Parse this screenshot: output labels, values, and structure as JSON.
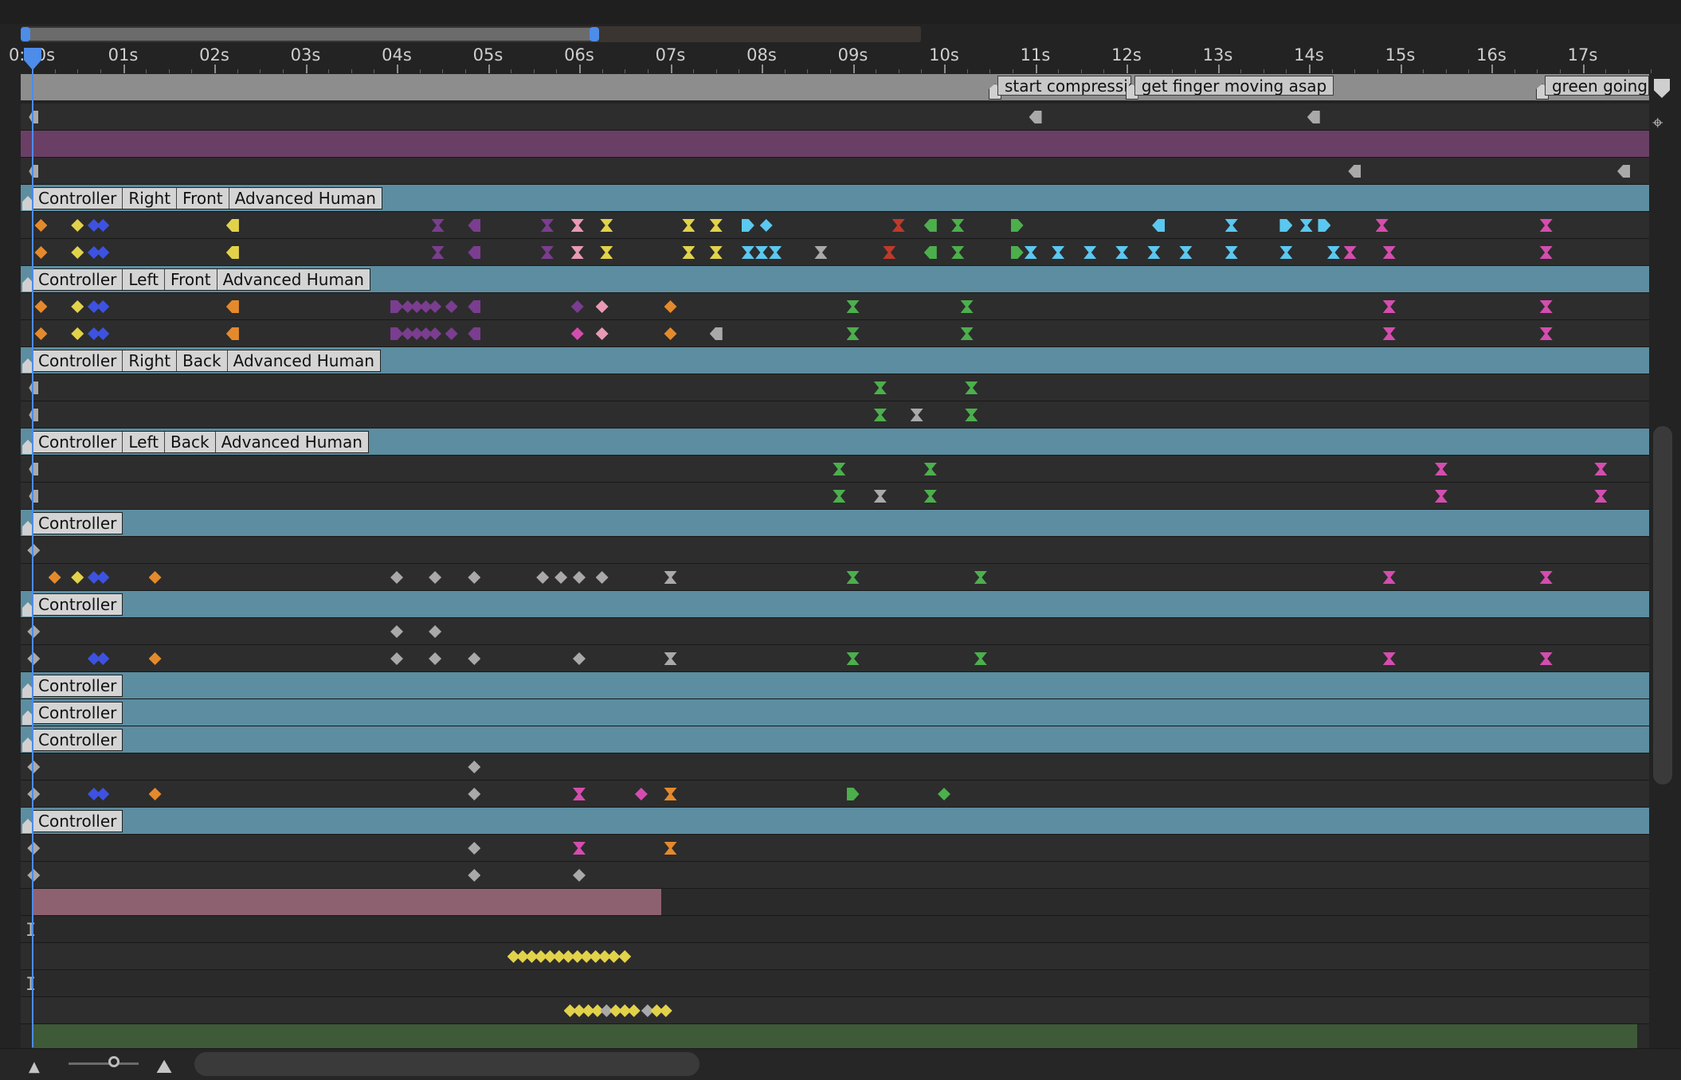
{
  "colors": {
    "orange": "#e58a2c",
    "yellow": "#e2d24a",
    "blue": "#3d52e0",
    "purple": "#7a3d8f",
    "pink": "#e89ab3",
    "magenta": "#d44dae",
    "cyan": "#5ac8f0",
    "green": "#4caf4c",
    "red": "#c0392b",
    "gray": "#a9a9a9",
    "header": "#5c8da0"
  },
  "ruler": {
    "labels": [
      "0:00s",
      "01s",
      "02s",
      "03s",
      "04s",
      "05s",
      "06s",
      "07s",
      "08s",
      "09s",
      "10s",
      "11s",
      "12s",
      "13s",
      "14s",
      "15s",
      "16s",
      "17s"
    ]
  },
  "markers": [
    {
      "label": "start compression",
      "time": 10.55
    },
    {
      "label": "get finger moving asap",
      "time": 12.05
    },
    {
      "label": "green going",
      "time": 16.55
    }
  ],
  "icons": {
    "playhead": "playhead-icon",
    "expand": "expand-triangle-icon",
    "zoom_out": "zoom-out-mountain-icon",
    "zoom_in": "zoom-in-mountain-icon",
    "marker_end": "marker-end-icon",
    "keyframe_side": "keyframe-ease-icon"
  },
  "rows": [
    {
      "type": "track",
      "kf": [
        [
          0.02,
          "gray",
          "start"
        ],
        [
          11.0,
          "gray",
          "left"
        ],
        [
          14.05,
          "gray",
          "left"
        ]
      ]
    },
    {
      "type": "purple"
    },
    {
      "type": "track",
      "kf": [
        [
          0.02,
          "gray",
          "start"
        ],
        [
          14.5,
          "gray",
          "left"
        ],
        [
          17.45,
          "gray",
          "left"
        ]
      ]
    },
    {
      "type": "header",
      "label": [
        "Controller",
        "Right",
        "Front",
        "Advanced Human"
      ]
    },
    {
      "type": "track",
      "kf": [
        [
          0.1,
          "orange",
          "diamond"
        ],
        [
          0.5,
          "yellow",
          "diamond"
        ],
        [
          0.68,
          "blue",
          "diamond"
        ],
        [
          0.78,
          "blue",
          "diamond"
        ],
        [
          2.2,
          "yellow",
          "left"
        ],
        [
          4.45,
          "purple",
          "hour"
        ],
        [
          4.85,
          "purple",
          "left"
        ],
        [
          5.65,
          "purple",
          "hour"
        ],
        [
          5.98,
          "pink",
          "hour"
        ],
        [
          6.3,
          "yellow",
          "hour"
        ],
        [
          7.2,
          "yellow",
          "hour"
        ],
        [
          7.5,
          "yellow",
          "hour"
        ],
        [
          7.85,
          "cyan",
          "right"
        ],
        [
          8.05,
          "cyan",
          "diamond"
        ],
        [
          9.5,
          "red",
          "hour"
        ],
        [
          9.85,
          "green",
          "left"
        ],
        [
          10.15,
          "green",
          "hour"
        ],
        [
          10.8,
          "green",
          "right"
        ],
        [
          12.35,
          "cyan",
          "left"
        ],
        [
          13.15,
          "cyan",
          "hour"
        ],
        [
          13.75,
          "cyan",
          "right"
        ],
        [
          13.97,
          "cyan",
          "hour"
        ],
        [
          14.17,
          "cyan",
          "right"
        ],
        [
          14.8,
          "magenta",
          "hour"
        ],
        [
          16.6,
          "magenta",
          "hour"
        ]
      ]
    },
    {
      "type": "track",
      "kf": [
        [
          0.1,
          "orange",
          "diamond"
        ],
        [
          0.5,
          "yellow",
          "diamond"
        ],
        [
          0.68,
          "blue",
          "diamond"
        ],
        [
          0.78,
          "blue",
          "diamond"
        ],
        [
          2.2,
          "yellow",
          "left"
        ],
        [
          4.45,
          "purple",
          "hour"
        ],
        [
          4.85,
          "purple",
          "left"
        ],
        [
          5.65,
          "purple",
          "hour"
        ],
        [
          5.98,
          "pink",
          "hour"
        ],
        [
          6.3,
          "yellow",
          "hour"
        ],
        [
          7.2,
          "yellow",
          "hour"
        ],
        [
          7.5,
          "yellow",
          "hour"
        ],
        [
          7.85,
          "cyan",
          "hour"
        ],
        [
          8.0,
          "cyan",
          "hour"
        ],
        [
          8.15,
          "cyan",
          "hour"
        ],
        [
          8.65,
          "gray",
          "hour"
        ],
        [
          9.4,
          "red",
          "hour"
        ],
        [
          9.85,
          "green",
          "left"
        ],
        [
          10.15,
          "green",
          "hour"
        ],
        [
          10.8,
          "green",
          "right"
        ],
        [
          10.95,
          "cyan",
          "hour"
        ],
        [
          11.25,
          "cyan",
          "hour"
        ],
        [
          11.6,
          "cyan",
          "hour"
        ],
        [
          11.95,
          "cyan",
          "hour"
        ],
        [
          12.3,
          "cyan",
          "hour"
        ],
        [
          12.65,
          "cyan",
          "hour"
        ],
        [
          13.15,
          "cyan",
          "hour"
        ],
        [
          13.75,
          "cyan",
          "hour"
        ],
        [
          14.27,
          "cyan",
          "hour"
        ],
        [
          14.45,
          "magenta",
          "hour"
        ],
        [
          14.88,
          "magenta",
          "hour"
        ],
        [
          16.6,
          "magenta",
          "hour"
        ]
      ]
    },
    {
      "type": "header",
      "label": [
        "Controller",
        "Left",
        "Front",
        "Advanced Human"
      ]
    },
    {
      "type": "track",
      "kf": [
        [
          0.1,
          "orange",
          "diamond"
        ],
        [
          0.5,
          "yellow",
          "diamond"
        ],
        [
          0.68,
          "blue",
          "diamond"
        ],
        [
          0.78,
          "blue",
          "diamond"
        ],
        [
          2.2,
          "orange",
          "left"
        ],
        [
          4.0,
          "purple",
          "right"
        ],
        [
          4.12,
          "purple",
          "diamond"
        ],
        [
          4.22,
          "purple",
          "diamond"
        ],
        [
          4.32,
          "purple",
          "diamond"
        ],
        [
          4.42,
          "purple",
          "diamond"
        ],
        [
          4.6,
          "purple",
          "diamond"
        ],
        [
          4.85,
          "purple",
          "left"
        ],
        [
          5.98,
          "purple",
          "diamond"
        ],
        [
          6.25,
          "pink",
          "diamond"
        ],
        [
          7.0,
          "orange",
          "diamond"
        ],
        [
          9.0,
          "green",
          "hour"
        ],
        [
          10.25,
          "green",
          "hour"
        ],
        [
          14.88,
          "magenta",
          "hour"
        ],
        [
          16.6,
          "magenta",
          "hour"
        ]
      ]
    },
    {
      "type": "track",
      "kf": [
        [
          0.1,
          "orange",
          "diamond"
        ],
        [
          0.5,
          "yellow",
          "diamond"
        ],
        [
          0.68,
          "blue",
          "diamond"
        ],
        [
          0.78,
          "blue",
          "diamond"
        ],
        [
          2.2,
          "orange",
          "left"
        ],
        [
          4.0,
          "purple",
          "right"
        ],
        [
          4.12,
          "purple",
          "diamond"
        ],
        [
          4.22,
          "purple",
          "diamond"
        ],
        [
          4.32,
          "purple",
          "diamond"
        ],
        [
          4.42,
          "purple",
          "diamond"
        ],
        [
          4.6,
          "purple",
          "diamond"
        ],
        [
          4.85,
          "purple",
          "left"
        ],
        [
          5.98,
          "magenta",
          "diamond"
        ],
        [
          6.25,
          "pink",
          "diamond"
        ],
        [
          7.0,
          "orange",
          "diamond"
        ],
        [
          7.5,
          "gray",
          "left"
        ],
        [
          9.0,
          "green",
          "hour"
        ],
        [
          10.25,
          "green",
          "hour"
        ],
        [
          14.88,
          "magenta",
          "hour"
        ],
        [
          16.6,
          "magenta",
          "hour"
        ]
      ]
    },
    {
      "type": "header",
      "label": [
        "Controller",
        "Right",
        "Back",
        "Advanced Human"
      ]
    },
    {
      "type": "track",
      "kf": [
        [
          0.02,
          "gray",
          "start"
        ],
        [
          9.3,
          "green",
          "hour"
        ],
        [
          10.3,
          "green",
          "hour"
        ]
      ]
    },
    {
      "type": "track",
      "kf": [
        [
          0.02,
          "gray",
          "start"
        ],
        [
          9.3,
          "green",
          "hour"
        ],
        [
          9.7,
          "gray",
          "hour"
        ],
        [
          10.3,
          "green",
          "hour"
        ]
      ]
    },
    {
      "type": "header",
      "label": [
        "Controller",
        "Left",
        "Back",
        "Advanced Human"
      ]
    },
    {
      "type": "track",
      "kf": [
        [
          0.02,
          "gray",
          "start"
        ],
        [
          8.85,
          "green",
          "hour"
        ],
        [
          9.85,
          "green",
          "hour"
        ],
        [
          15.45,
          "magenta",
          "hour"
        ],
        [
          17.2,
          "magenta",
          "hour"
        ]
      ]
    },
    {
      "type": "track",
      "kf": [
        [
          0.02,
          "gray",
          "start"
        ],
        [
          8.85,
          "green",
          "hour"
        ],
        [
          9.3,
          "gray",
          "hour"
        ],
        [
          9.85,
          "green",
          "hour"
        ],
        [
          15.45,
          "magenta",
          "hour"
        ],
        [
          17.2,
          "magenta",
          "hour"
        ]
      ]
    },
    {
      "type": "header",
      "label": [
        "Controller"
      ]
    },
    {
      "type": "track",
      "kf": [
        [
          0.02,
          "gray",
          "diamond"
        ]
      ]
    },
    {
      "type": "track",
      "kf": [
        [
          0.25,
          "orange",
          "diamond"
        ],
        [
          0.5,
          "yellow",
          "diamond"
        ],
        [
          0.68,
          "blue",
          "diamond"
        ],
        [
          0.78,
          "blue",
          "diamond"
        ],
        [
          1.35,
          "orange",
          "diamond"
        ],
        [
          4.0,
          "gray",
          "diamond"
        ],
        [
          4.42,
          "gray",
          "diamond"
        ],
        [
          4.85,
          "gray",
          "diamond"
        ],
        [
          5.6,
          "gray",
          "diamond"
        ],
        [
          5.8,
          "gray",
          "diamond"
        ],
        [
          6.0,
          "gray",
          "diamond"
        ],
        [
          6.25,
          "gray",
          "diamond"
        ],
        [
          7.0,
          "gray",
          "hour"
        ],
        [
          9.0,
          "green",
          "hour"
        ],
        [
          10.4,
          "green",
          "hour"
        ],
        [
          14.88,
          "magenta",
          "hour"
        ],
        [
          16.6,
          "magenta",
          "hour"
        ]
      ]
    },
    {
      "type": "header",
      "label": [
        "Controller"
      ]
    },
    {
      "type": "track",
      "kf": [
        [
          0.02,
          "gray",
          "diamond"
        ],
        [
          4.0,
          "gray",
          "diamond"
        ],
        [
          4.42,
          "gray",
          "diamond"
        ]
      ]
    },
    {
      "type": "track",
      "kf": [
        [
          0.02,
          "gray",
          "diamond"
        ],
        [
          0.68,
          "blue",
          "diamond"
        ],
        [
          0.78,
          "blue",
          "diamond"
        ],
        [
          1.35,
          "orange",
          "diamond"
        ],
        [
          4.0,
          "gray",
          "diamond"
        ],
        [
          4.42,
          "gray",
          "diamond"
        ],
        [
          4.85,
          "gray",
          "diamond"
        ],
        [
          6.0,
          "gray",
          "diamond"
        ],
        [
          7.0,
          "gray",
          "hour"
        ],
        [
          9.0,
          "green",
          "hour"
        ],
        [
          10.4,
          "green",
          "hour"
        ],
        [
          14.88,
          "magenta",
          "hour"
        ],
        [
          16.6,
          "magenta",
          "hour"
        ]
      ]
    },
    {
      "type": "header",
      "label": [
        "Controller"
      ]
    },
    {
      "type": "header",
      "label": [
        "Controller"
      ]
    },
    {
      "type": "header",
      "label": [
        "Controller"
      ]
    },
    {
      "type": "track",
      "kf": [
        [
          0.02,
          "gray",
          "diamond"
        ],
        [
          4.85,
          "gray",
          "diamond"
        ]
      ]
    },
    {
      "type": "track",
      "kf": [
        [
          0.02,
          "gray",
          "diamond"
        ],
        [
          0.68,
          "blue",
          "diamond"
        ],
        [
          0.78,
          "blue",
          "diamond"
        ],
        [
          1.35,
          "orange",
          "diamond"
        ],
        [
          4.85,
          "gray",
          "diamond"
        ],
        [
          6.0,
          "magenta",
          "hour"
        ],
        [
          6.68,
          "magenta",
          "diamond"
        ],
        [
          7.0,
          "orange",
          "hour"
        ],
        [
          9.0,
          "green",
          "right"
        ],
        [
          10.0,
          "green",
          "diamond"
        ]
      ]
    },
    {
      "type": "header",
      "label": [
        "Controller"
      ]
    },
    {
      "type": "track",
      "kf": [
        [
          0.02,
          "gray",
          "diamond"
        ],
        [
          4.85,
          "gray",
          "diamond"
        ],
        [
          6.0,
          "magenta",
          "hour"
        ],
        [
          7.0,
          "orange",
          "hour"
        ]
      ]
    },
    {
      "type": "track",
      "kf": [
        [
          0.02,
          "gray",
          "diamond"
        ],
        [
          4.85,
          "gray",
          "diamond"
        ],
        [
          6.0,
          "gray",
          "diamond"
        ]
      ]
    },
    {
      "type": "span",
      "start": 0.0,
      "end": 6.9,
      "color": "#8e6170"
    },
    {
      "type": "ibeam"
    },
    {
      "type": "track",
      "kf": [
        [
          5.28,
          "yellow",
          "diamond"
        ],
        [
          5.38,
          "yellow",
          "diamond"
        ],
        [
          5.48,
          "yellow",
          "diamond"
        ],
        [
          5.58,
          "yellow",
          "diamond"
        ],
        [
          5.68,
          "yellow",
          "diamond"
        ],
        [
          5.78,
          "yellow",
          "diamond"
        ],
        [
          5.88,
          "yellow",
          "diamond"
        ],
        [
          5.98,
          "yellow",
          "diamond"
        ],
        [
          6.08,
          "yellow",
          "diamond"
        ],
        [
          6.18,
          "yellow",
          "diamond"
        ],
        [
          6.28,
          "yellow",
          "diamond"
        ],
        [
          6.38,
          "yellow",
          "diamond"
        ],
        [
          6.5,
          "yellow",
          "diamond"
        ]
      ]
    },
    {
      "type": "ibeam"
    },
    {
      "type": "track",
      "kf": [
        [
          5.9,
          "yellow",
          "diamond"
        ],
        [
          6.0,
          "yellow",
          "diamond"
        ],
        [
          6.1,
          "yellow",
          "diamond"
        ],
        [
          6.2,
          "yellow",
          "diamond"
        ],
        [
          6.3,
          "gray",
          "diamond"
        ],
        [
          6.4,
          "yellow",
          "diamond"
        ],
        [
          6.5,
          "yellow",
          "diamond"
        ],
        [
          6.6,
          "yellow",
          "diamond"
        ],
        [
          6.75,
          "gray",
          "diamond"
        ],
        [
          6.85,
          "yellow",
          "diamond"
        ],
        [
          6.95,
          "yellow",
          "diamond"
        ]
      ]
    },
    {
      "type": "span",
      "start": 0.0,
      "end": 17.6,
      "color": "#3e5a38"
    }
  ]
}
